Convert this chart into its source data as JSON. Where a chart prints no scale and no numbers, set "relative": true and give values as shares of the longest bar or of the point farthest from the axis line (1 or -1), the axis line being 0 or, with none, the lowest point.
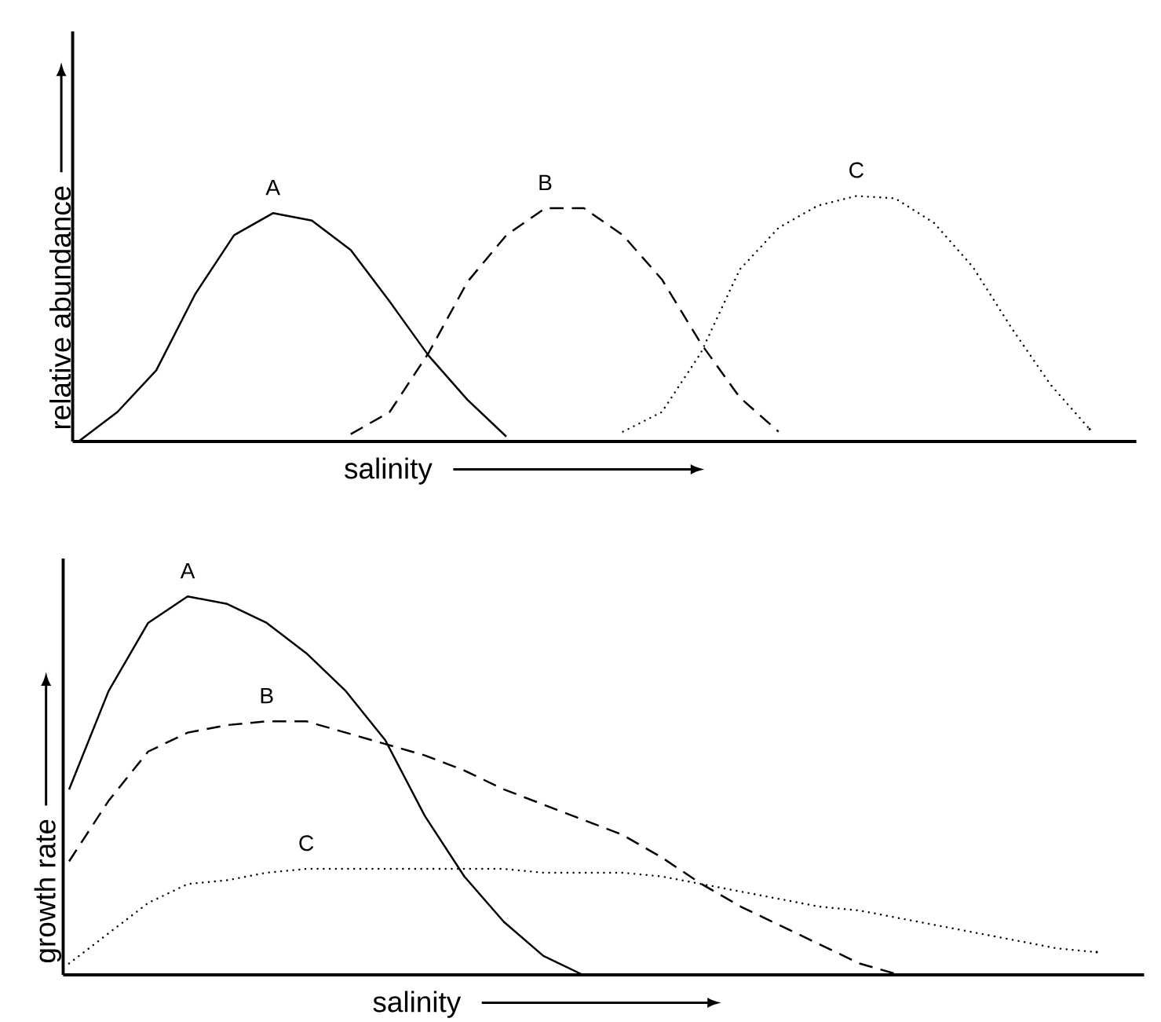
{
  "chart_data": [
    {
      "type": "line",
      "relative": true,
      "xlabel": "salinity",
      "ylabel": "relative abundance",
      "categories": [
        null,
        null,
        null,
        null,
        null,
        null,
        null,
        null,
        null,
        null,
        null,
        null,
        null,
        null,
        null,
        null,
        null,
        null,
        null,
        null,
        null,
        null,
        null,
        null,
        null,
        null,
        null,
        null
      ],
      "series": [
        {
          "name": "A",
          "color": "#000000",
          "line_style": "solid",
          "values": [
            0,
            0.12,
            0.29,
            0.6,
            0.84,
            0.93,
            0.9,
            0.78,
            0.57,
            0.35,
            0.17,
            0.02,
            null,
            null,
            null,
            null,
            null,
            null,
            null,
            null,
            null,
            null,
            null,
            null,
            null,
            null,
            null,
            null
          ]
        },
        {
          "name": "B",
          "color": "#000000",
          "line_style": "dashed",
          "values": [
            null,
            null,
            null,
            null,
            null,
            null,
            null,
            0.03,
            0.12,
            0.36,
            0.65,
            0.84,
            0.95,
            0.95,
            0.84,
            0.66,
            0.4,
            0.18,
            0.04,
            null,
            null,
            null,
            null,
            null,
            null,
            null,
            null,
            null
          ]
        },
        {
          "name": "C",
          "color": "#000000",
          "line_style": "dotted",
          "values": [
            null,
            null,
            null,
            null,
            null,
            null,
            null,
            null,
            null,
            null,
            null,
            null,
            null,
            null,
            0.04,
            0.12,
            0.36,
            0.7,
            0.87,
            0.96,
            1.0,
            0.99,
            0.89,
            0.71,
            0.46,
            0.23,
            0.05,
            null
          ]
        }
      ]
    },
    {
      "type": "line",
      "relative": true,
      "xlabel": "salinity",
      "ylabel": "growth rate",
      "categories": [
        null,
        null,
        null,
        null,
        null,
        null,
        null,
        null,
        null,
        null,
        null,
        null,
        null,
        null,
        null,
        null,
        null,
        null,
        null,
        null,
        null,
        null,
        null,
        null,
        null,
        null,
        null,
        null
      ],
      "series": [
        {
          "name": "A",
          "color": "#000000",
          "line_style": "solid",
          "values": [
            0.49,
            0.75,
            0.93,
            1.0,
            0.98,
            0.93,
            0.85,
            0.75,
            0.62,
            0.42,
            0.26,
            0.14,
            0.05,
            0,
            null,
            null,
            null,
            null,
            null,
            null,
            null,
            null,
            null,
            null,
            null,
            null,
            null,
            null
          ]
        },
        {
          "name": "B",
          "color": "#000000",
          "line_style": "dashed",
          "values": [
            0.3,
            0.46,
            0.59,
            0.64,
            0.66,
            0.67,
            0.67,
            0.64,
            0.61,
            0.58,
            0.54,
            0.49,
            0.45,
            0.41,
            0.37,
            0.31,
            0.24,
            0.18,
            0.13,
            0.08,
            0.03,
            0,
            null,
            null,
            null,
            null,
            null,
            null
          ]
        },
        {
          "name": "C",
          "color": "#000000",
          "line_style": "dotted",
          "values": [
            0.03,
            0.11,
            0.19,
            0.24,
            0.25,
            0.27,
            0.28,
            0.28,
            0.28,
            0.28,
            0.28,
            0.28,
            0.27,
            0.27,
            0.27,
            0.26,
            0.24,
            0.22,
            0.2,
            0.18,
            0.17,
            0.15,
            0.13,
            0.11,
            0.09,
            0.07,
            0.06,
            null
          ]
        }
      ]
    }
  ]
}
